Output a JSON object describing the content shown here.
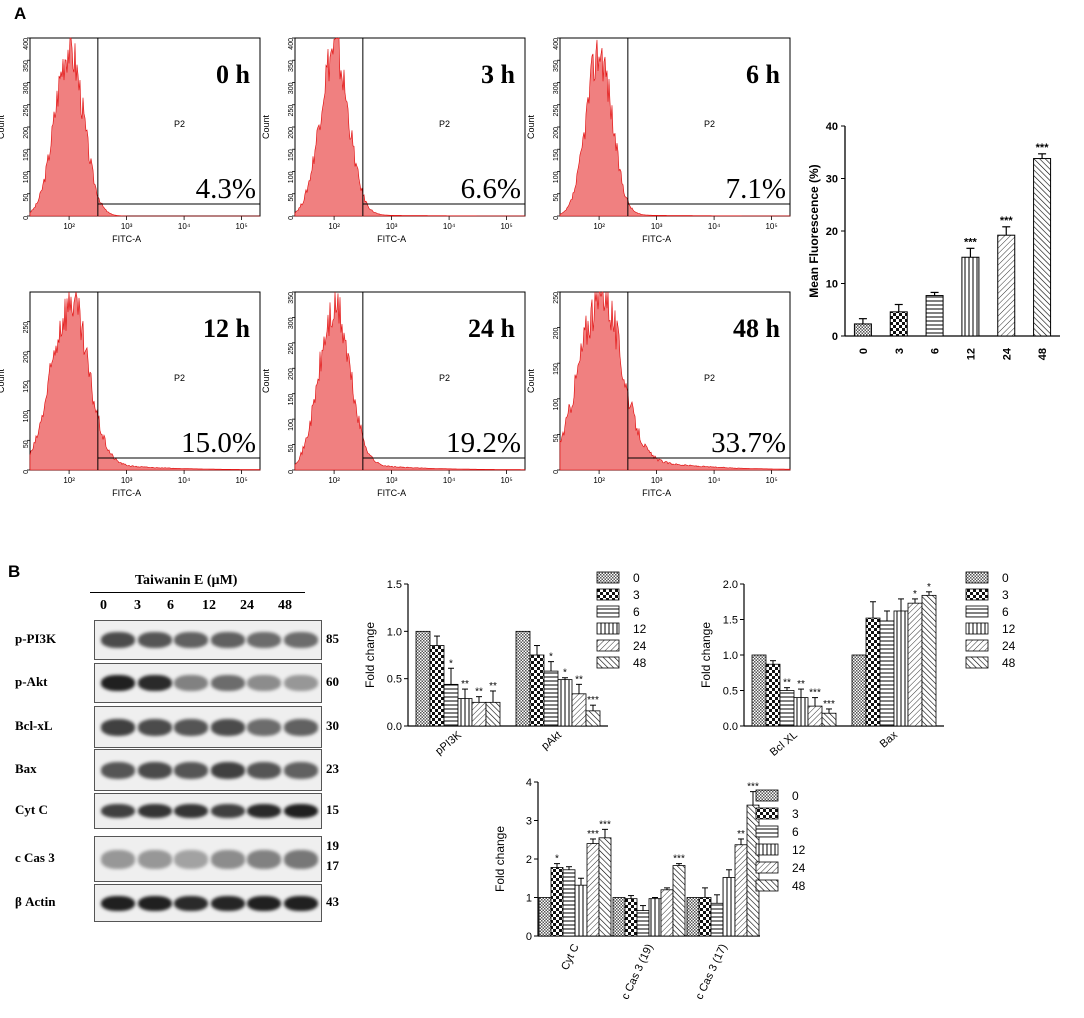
{
  "panel_a_label": "A",
  "panel_b_label": "B",
  "histograms": [
    {
      "time": "0 h",
      "percent": "4.3%",
      "gate": "P2",
      "xlabel": "FITC-A",
      "ylabel": "Count",
      "ymax": 400,
      "yticks": [
        "0",
        "50",
        "100",
        "150",
        "200",
        "250",
        "300",
        "350",
        "400"
      ],
      "xticks": [
        "10²",
        "10³",
        "10⁴",
        "10⁵"
      ]
    },
    {
      "time": "3 h",
      "percent": "6.6%",
      "gate": "P2",
      "xlabel": "FITC-A",
      "ylabel": "Count",
      "ymax": 400,
      "yticks": [
        "0",
        "50",
        "100",
        "150",
        "200",
        "250",
        "300",
        "350",
        "400"
      ],
      "xticks": [
        "10²",
        "10³",
        "10⁴",
        "10⁵"
      ]
    },
    {
      "time": "6 h",
      "percent": "7.1%",
      "gate": "P2",
      "xlabel": "FITC-A",
      "ylabel": "Count",
      "ymax": 400,
      "yticks": [
        "0",
        "50",
        "100",
        "150",
        "200",
        "250",
        "300",
        "350",
        "400"
      ],
      "xticks": [
        "10²",
        "10³",
        "10⁴",
        "10⁵"
      ]
    },
    {
      "time": "12 h",
      "percent": "15.0%",
      "gate": "P2",
      "xlabel": "FITC-A",
      "ylabel": "Count",
      "ymax": 300,
      "yticks": [
        "0",
        "50",
        "100",
        "150",
        "200",
        "250"
      ],
      "xticks": [
        "10²",
        "10³",
        "10⁴",
        "10⁵"
      ]
    },
    {
      "time": "24 h",
      "percent": "19.2%",
      "gate": "P2",
      "xlabel": "FITC-A",
      "ylabel": "Count",
      "ymax": 350,
      "yticks": [
        "0",
        "50",
        "100",
        "150",
        "200",
        "250",
        "300",
        "350"
      ],
      "xticks": [
        "10²",
        "10³",
        "10⁴",
        "10⁵"
      ]
    },
    {
      "time": "48 h",
      "percent": "33.7%",
      "gate": "P2",
      "xlabel": "FITC-A",
      "ylabel": "Count",
      "ymax": 250,
      "yticks": [
        "0",
        "50",
        "100",
        "150",
        "200",
        "250"
      ],
      "xticks": [
        "10²",
        "10³",
        "10⁴",
        "10⁵"
      ]
    }
  ],
  "blot": {
    "title": "Taiwanin E (µM)",
    "lanes": [
      "0",
      "3",
      "6",
      "12",
      "24",
      "48"
    ],
    "rows": [
      {
        "label": "p-PI3K",
        "mw": "85"
      },
      {
        "label": "p-Akt",
        "mw": "60"
      },
      {
        "label": "Bcl-xL",
        "mw": "30"
      },
      {
        "label": "Bax",
        "mw": "23"
      },
      {
        "label": "Cyt C",
        "mw": "15"
      },
      {
        "label": "c Cas 3",
        "mw": "19",
        "mw2": "17"
      },
      {
        "label": "β Actin",
        "mw": "43"
      }
    ]
  },
  "chart_data": [
    {
      "type": "bar",
      "title": "",
      "ylabel": "Mean Fluorescence (%)",
      "xlabel": "",
      "categories": [
        "0",
        "3",
        "6",
        "12",
        "24",
        "48"
      ],
      "values": [
        2.3,
        4.6,
        7.7,
        15.0,
        19.2,
        33.8
      ],
      "errors": [
        1.0,
        1.4,
        0.6,
        1.7,
        1.6,
        0.9
      ],
      "significance": [
        "",
        "",
        "",
        "***",
        "***",
        "***"
      ],
      "ylim": [
        0,
        40
      ],
      "yticks": [
        "0",
        "10",
        "20",
        "30",
        "40"
      ]
    },
    {
      "type": "bar",
      "ylabel": "Fold change",
      "groups": [
        "pPI3K",
        "pAkt"
      ],
      "legend": [
        "0",
        "3",
        "6",
        "12",
        "24",
        "48"
      ],
      "series": [
        {
          "name": "pPI3K",
          "values": [
            1.0,
            0.85,
            0.44,
            0.29,
            0.25,
            0.25
          ],
          "errors": [
            0,
            0.1,
            0.17,
            0.1,
            0.06,
            0.12
          ],
          "significance": [
            "",
            "",
            "*",
            "**",
            "**",
            "**"
          ]
        },
        {
          "name": "pAkt",
          "values": [
            1.0,
            0.75,
            0.58,
            0.49,
            0.34,
            0.16
          ],
          "errors": [
            0,
            0.1,
            0.1,
            0.02,
            0.1,
            0.06
          ],
          "significance": [
            "",
            "",
            "*",
            "*",
            "**",
            "***"
          ]
        }
      ],
      "ylim": [
        0,
        1.5
      ],
      "yticks": [
        "0.0",
        "0.5",
        "1.0",
        "1.5"
      ]
    },
    {
      "type": "bar",
      "ylabel": "Fold change",
      "groups": [
        "Bcl XL",
        "Bax"
      ],
      "legend": [
        "0",
        "3",
        "6",
        "12",
        "24",
        "48"
      ],
      "series": [
        {
          "name": "Bcl XL",
          "values": [
            1.0,
            0.87,
            0.5,
            0.4,
            0.28,
            0.18
          ],
          "errors": [
            0,
            0.05,
            0.04,
            0.12,
            0.12,
            0.06
          ],
          "significance": [
            "",
            "",
            "**",
            "**",
            "***",
            "***"
          ]
        },
        {
          "name": "Bax",
          "values": [
            1.0,
            1.52,
            1.48,
            1.62,
            1.73,
            1.84
          ],
          "errors": [
            0,
            0.23,
            0.14,
            0.17,
            0.06,
            0.05
          ],
          "significance": [
            "",
            "",
            "",
            "",
            "*",
            "*"
          ]
        }
      ],
      "ylim": [
        0,
        2.0
      ],
      "yticks": [
        "0.0",
        "0.5",
        "1.0",
        "1.5",
        "2.0"
      ]
    },
    {
      "type": "bar",
      "ylabel": "Fold change",
      "groups": [
        "Cyt C",
        "c Cas 3 (19)",
        "c Cas 3 (17)"
      ],
      "legend": [
        "0",
        "3",
        "6",
        "12",
        "24",
        "48"
      ],
      "series": [
        {
          "name": "Cyt C",
          "values": [
            1.0,
            1.78,
            1.72,
            1.32,
            2.4,
            2.55
          ],
          "errors": [
            0,
            0.1,
            0.08,
            0.18,
            0.12,
            0.22
          ],
          "significance": [
            "",
            "*",
            "",
            "",
            "***",
            "***"
          ]
        },
        {
          "name": "c Cas 3 (19)",
          "values": [
            1.0,
            0.97,
            0.66,
            0.97,
            1.2,
            1.83
          ],
          "errors": [
            0,
            0.08,
            0.13,
            0.03,
            0.05,
            0.05
          ],
          "significance": [
            "",
            "",
            "",
            "",
            "",
            "***"
          ]
        },
        {
          "name": "c Cas 3 (17)",
          "values": [
            1.0,
            1.0,
            0.85,
            1.52,
            2.37,
            3.4
          ],
          "errors": [
            0,
            0.25,
            0.22,
            0.2,
            0.15,
            0.35
          ],
          "significance": [
            "",
            "",
            "",
            "",
            "**",
            "***"
          ]
        }
      ],
      "ylim": [
        0,
        4
      ],
      "yticks": [
        "0",
        "1",
        "2",
        "3",
        "4"
      ]
    }
  ]
}
